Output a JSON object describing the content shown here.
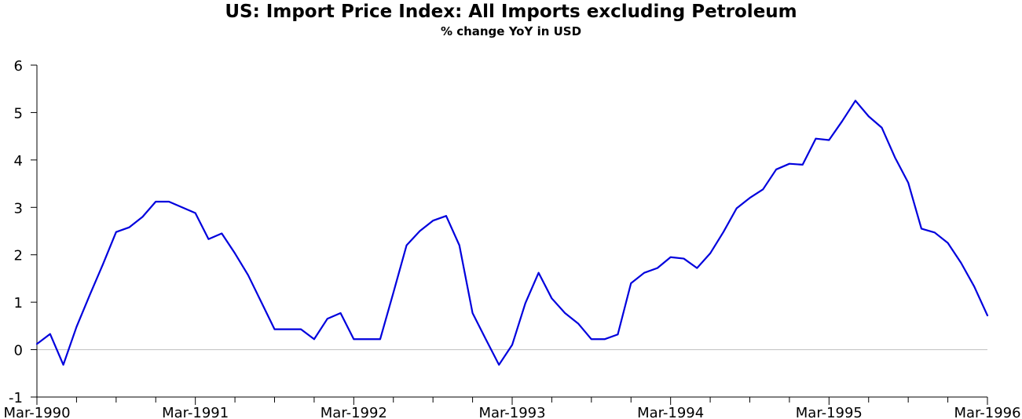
{
  "chart_data": {
    "type": "line",
    "title": "US: Import Price Index: All Imports excluding Petroleum",
    "subtitle": "% change YoY in USD",
    "xlabel": "",
    "ylabel": "",
    "ylim": [
      -1,
      6
    ],
    "yticks": [
      "-1",
      "0",
      "1",
      "2",
      "3",
      "4",
      "5",
      "6"
    ],
    "xlim": [
      "Mar-1990",
      "Mar-1996"
    ],
    "xtick_labels": [
      "Mar-1990",
      "Mar-1991",
      "Mar-1992",
      "Mar-1993",
      "Mar-1994",
      "Mar-1995",
      "Mar-1996"
    ],
    "zero_line": true,
    "grid": false,
    "legend": "none",
    "series": [
      {
        "color": "#0000dd",
        "x": [
          "Mar-1990",
          "Apr-1990",
          "May-1990",
          "Jun-1990",
          "Jul-1990",
          "Aug-1990",
          "Sep-1990",
          "Oct-1990",
          "Nov-1990",
          "Dec-1990",
          "Jan-1991",
          "Feb-1991",
          "Mar-1991",
          "Apr-1991",
          "May-1991",
          "Jun-1991",
          "Jul-1991",
          "Aug-1991",
          "Sep-1991",
          "Oct-1991",
          "Nov-1991",
          "Dec-1991",
          "Jan-1992",
          "Feb-1992",
          "Mar-1992",
          "Apr-1992",
          "May-1992",
          "Jun-1992",
          "Jul-1992",
          "Aug-1992",
          "Sep-1992",
          "Oct-1992",
          "Nov-1992",
          "Dec-1992",
          "Jan-1993",
          "Feb-1993",
          "Mar-1993",
          "Apr-1993",
          "May-1993",
          "Jun-1993",
          "Jul-1993",
          "Aug-1993",
          "Sep-1993",
          "Oct-1993",
          "Nov-1993",
          "Dec-1993",
          "Jan-1994",
          "Feb-1994",
          "Mar-1994",
          "Apr-1994",
          "May-1994",
          "Jun-1994",
          "Jul-1994",
          "Aug-1994",
          "Sep-1994",
          "Oct-1994",
          "Nov-1994",
          "Dec-1994",
          "Jan-1995",
          "Feb-1995",
          "Mar-1995",
          "Apr-1995",
          "May-1995",
          "Jun-1995",
          "Jul-1995",
          "Aug-1995",
          "Sep-1995",
          "Oct-1995",
          "Nov-1995",
          "Dec-1995",
          "Jan-1996",
          "Feb-1996",
          "Mar-1996"
        ],
        "values": [
          0.12,
          0.33,
          -0.32,
          0.48,
          1.15,
          1.8,
          2.48,
          2.58,
          2.8,
          3.12,
          3.12,
          3.0,
          2.88,
          2.33,
          2.45,
          2.03,
          1.57,
          1.0,
          0.43,
          0.43,
          0.43,
          0.22,
          0.65,
          0.77,
          0.22,
          0.22,
          0.22,
          1.2,
          2.2,
          2.5,
          2.72,
          2.82,
          2.2,
          0.77,
          0.22,
          -0.32,
          0.1,
          0.98,
          1.62,
          1.08,
          0.77,
          0.55,
          0.22,
          0.22,
          0.32,
          1.4,
          1.62,
          1.72,
          1.95,
          1.92,
          1.72,
          2.03,
          2.48,
          2.98,
          3.2,
          3.38,
          3.8,
          3.92,
          3.9,
          4.45,
          4.42,
          4.82,
          5.25,
          4.92,
          4.68,
          4.05,
          3.52,
          2.55,
          2.47,
          2.25,
          1.83,
          1.33,
          0.72
        ]
      }
    ]
  }
}
